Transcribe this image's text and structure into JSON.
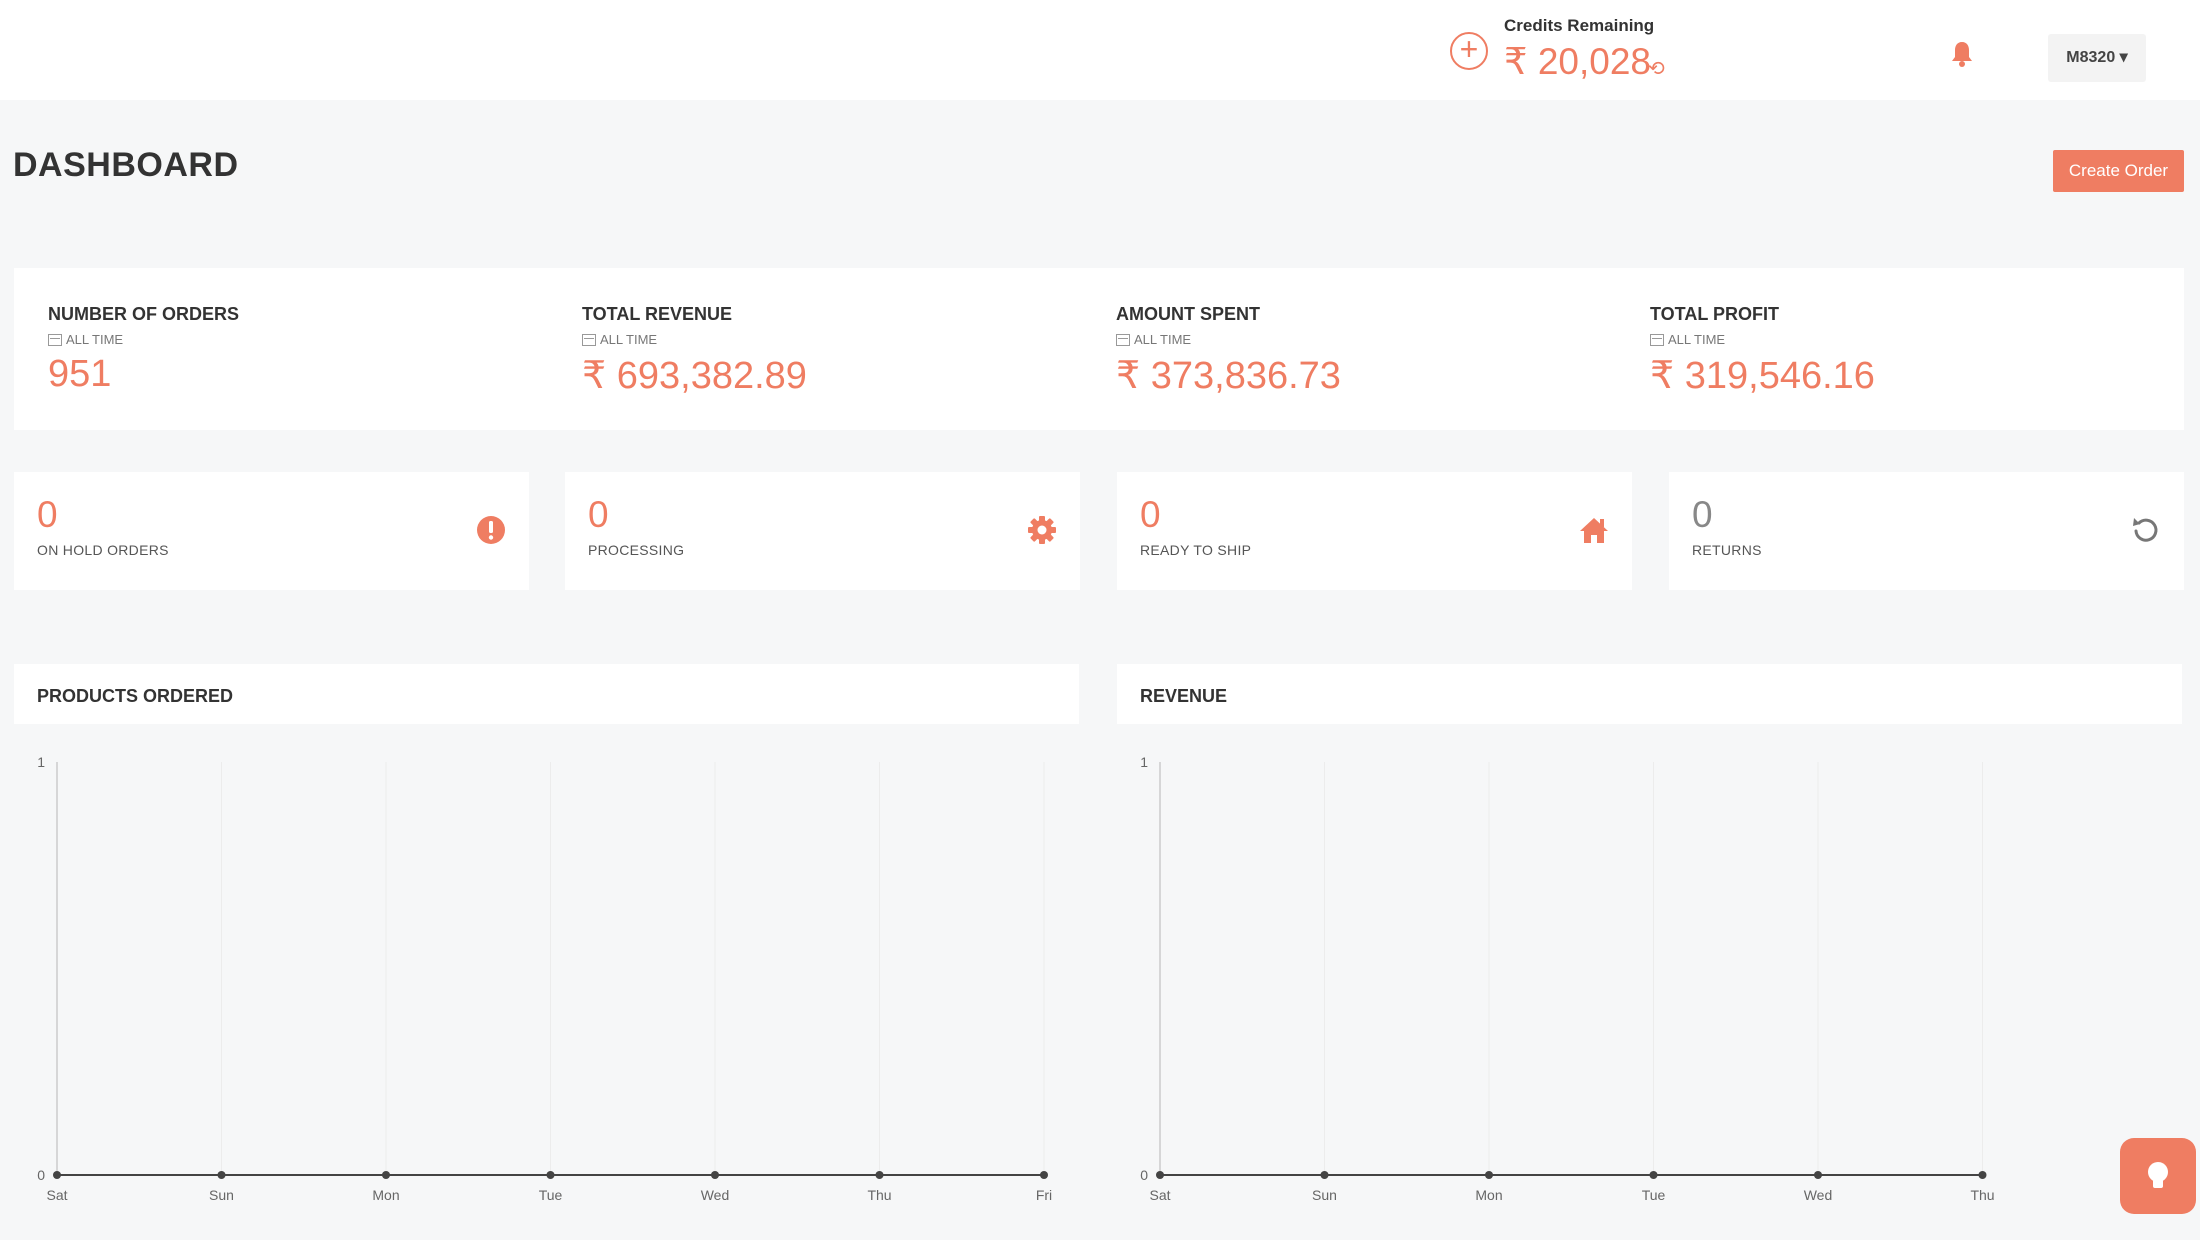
{
  "topbar": {
    "credits_label": "Credits Remaining",
    "credits_value": "₹ 20,028",
    "add_icon": "plus-circle-icon",
    "refresh_icon": "refresh-icon",
    "bell_icon": "bell-icon",
    "user": "M8320 ▾"
  },
  "page": {
    "title": "DASHBOARD",
    "create_order": "Create Order"
  },
  "stats": [
    {
      "label": "NUMBER OF ORDERS",
      "period": "ALL TIME",
      "value": "951"
    },
    {
      "label": "TOTAL REVENUE",
      "period": "ALL TIME",
      "value": "₹ 693,382.89"
    },
    {
      "label": "AMOUNT SPENT",
      "period": "ALL TIME",
      "value": "₹ 373,836.73"
    },
    {
      "label": "TOTAL PROFIT",
      "period": "ALL TIME",
      "value": "₹ 319,546.16"
    }
  ],
  "status": [
    {
      "count": "0",
      "label": "ON HOLD ORDERS",
      "icon": "exclamation-circle-icon"
    },
    {
      "count": "0",
      "label": "PROCESSING",
      "icon": "gear-icon"
    },
    {
      "count": "0",
      "label": "READY TO SHIP",
      "icon": "home-icon"
    },
    {
      "count": "0",
      "label": "RETURNS",
      "icon": "undo-icon"
    }
  ],
  "colors": {
    "accent": "#ef7d62",
    "grey": "#888888"
  },
  "chart_data": [
    {
      "type": "line",
      "title": "PRODUCTS ORDERED",
      "categories": [
        "Sat",
        "Sun",
        "Mon",
        "Tue",
        "Wed",
        "Thu",
        "Fri"
      ],
      "series": [
        {
          "values": [
            0,
            0,
            0,
            0,
            0,
            0,
            0
          ]
        }
      ],
      "ylim": [
        0,
        1
      ],
      "yticks": [
        "0",
        "1"
      ],
      "grid": true
    },
    {
      "type": "line",
      "title": "REVENUE",
      "categories": [
        "Sat",
        "Sun",
        "Mon",
        "Tue",
        "Wed",
        "Thu"
      ],
      "series": [
        {
          "values": [
            0,
            0,
            0,
            0,
            0,
            0
          ]
        }
      ],
      "ylim": [
        0,
        1
      ],
      "yticks": [
        "0",
        "1"
      ],
      "grid": true
    }
  ]
}
